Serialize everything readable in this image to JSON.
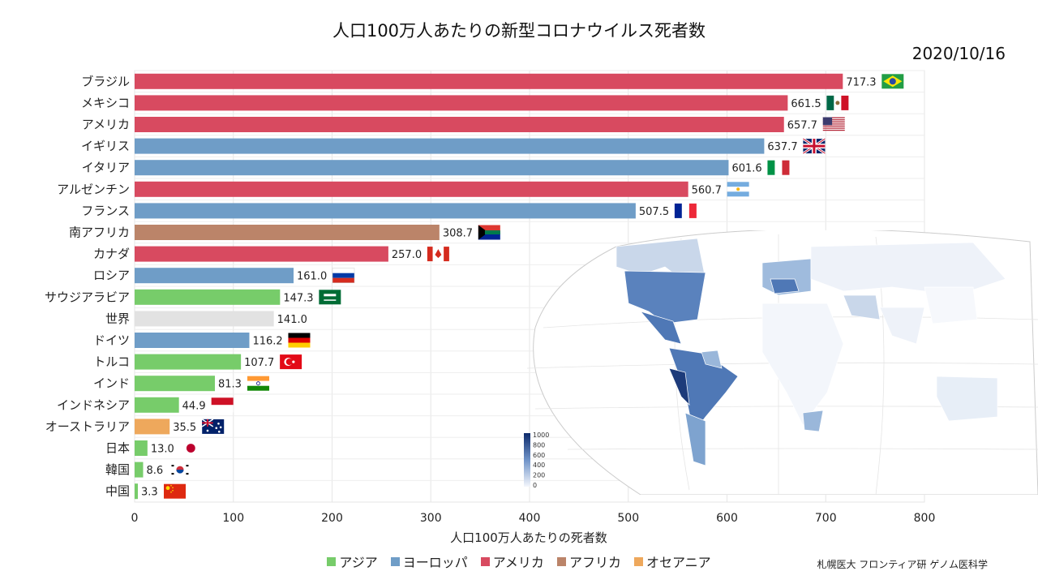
{
  "page": {
    "title": "人口100万人あたりの新型コロナウイルス死者数",
    "date": "2020/10/16",
    "credit": "札幌医大 フロンティア研 ゲノム医科学"
  },
  "colors": {
    "asia": "#77cc6a",
    "europe": "#6f9dc7",
    "americas": "#d84a60",
    "africa": "#bb8469",
    "oceania": "#eea85c",
    "world": "#e2e2e2"
  },
  "legend": [
    {
      "key": "asia",
      "label": "アジア"
    },
    {
      "key": "europe",
      "label": "ヨーロッパ"
    },
    {
      "key": "americas",
      "label": "アメリカ"
    },
    {
      "key": "africa",
      "label": "アフリカ"
    },
    {
      "key": "oceania",
      "label": "オセアニア"
    }
  ],
  "map_colorbar": {
    "ticks": [
      "1000",
      "800",
      "600",
      "400",
      "200",
      "0"
    ],
    "range": [
      0,
      1000
    ]
  },
  "chart_data": {
    "type": "bar",
    "orientation": "horizontal",
    "title": "人口100万人あたりの新型コロナウイルス死者数",
    "xlabel": "人口100万人あたりの死者数",
    "xlim": [
      0,
      800
    ],
    "xticks": [
      0,
      100,
      200,
      300,
      400,
      500,
      600,
      700,
      800
    ],
    "grid": true,
    "legend_position": "bottom",
    "categories": [
      "ブラジル",
      "メキシコ",
      "アメリカ",
      "イギリス",
      "イタリア",
      "アルゼンチン",
      "フランス",
      "南アフリカ",
      "カナダ",
      "ロシア",
      "サウジアラビア",
      "世界",
      "ドイツ",
      "トルコ",
      "インド",
      "インドネシア",
      "オーストラリア",
      "日本",
      "韓国",
      "中国"
    ],
    "values": [
      717.3,
      661.5,
      657.7,
      637.7,
      601.6,
      560.7,
      507.5,
      308.7,
      257.0,
      161.0,
      147.3,
      141.0,
      116.2,
      107.7,
      81.3,
      44.9,
      35.5,
      13.0,
      8.6,
      3.3
    ],
    "labels": [
      "717.3",
      "661.5",
      "657.7",
      "637.7",
      "601.6",
      "560.7",
      "507.5",
      "308.7",
      "257.0",
      "161.0",
      "147.3",
      "141.0",
      "116.2",
      "107.7",
      "81.3",
      "44.9",
      "35.5",
      "13.0",
      "8.6",
      "3.3"
    ],
    "regions": [
      "americas",
      "americas",
      "americas",
      "europe",
      "europe",
      "americas",
      "europe",
      "africa",
      "americas",
      "europe",
      "asia",
      "world",
      "europe",
      "asia",
      "asia",
      "asia",
      "oceania",
      "asia",
      "asia",
      "asia"
    ],
    "flags": [
      "brazil-flag",
      "mexico-flag",
      "usa-flag",
      "uk-flag",
      "italy-flag",
      "argentina-flag",
      "france-flag",
      "south-africa-flag",
      "canada-flag",
      "russia-flag",
      "saudi-arabia-flag",
      "",
      "germany-flag",
      "turkey-flag",
      "india-flag",
      "indonesia-flag",
      "australia-flag",
      "japan-flag",
      "korea-flag",
      "china-flag"
    ]
  }
}
